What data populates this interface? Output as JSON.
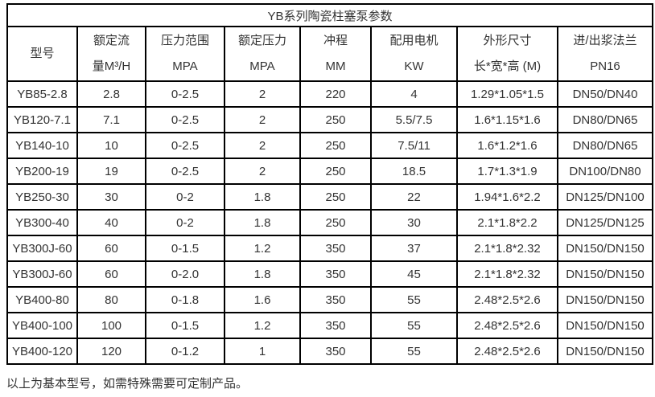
{
  "title": "YB系列陶瓷柱塞泵参数",
  "table": {
    "headers": [
      {
        "id": "model",
        "lines": [
          "型号"
        ]
      },
      {
        "id": "rated-flow",
        "lines": [
          "额定流",
          "量M³/H"
        ]
      },
      {
        "id": "pressure-range",
        "lines": [
          "压力范围",
          "MPA"
        ]
      },
      {
        "id": "rated-pressure",
        "lines": [
          "额定压力",
          "MPA"
        ]
      },
      {
        "id": "stroke",
        "lines": [
          "冲程",
          "MM"
        ]
      },
      {
        "id": "motor-power",
        "lines": [
          "配用电机",
          "KW"
        ]
      },
      {
        "id": "dimensions",
        "lines": [
          "外形尺寸",
          "长*宽*高 (M)"
        ]
      },
      {
        "id": "flange",
        "lines": [
          "进/出浆法兰",
          "PN16"
        ]
      }
    ],
    "rows": [
      [
        "YB85-2.8",
        "2.8",
        "0-2.5",
        "2",
        "220",
        "4",
        "1.29*1.05*1.5",
        "DN50/DN40"
      ],
      [
        "YB120-7.1",
        "7.1",
        "0-2.5",
        "2",
        "250",
        "5.5/7.5",
        "1.6*1.15*1.6",
        "DN80/DN65"
      ],
      [
        "YB140-10",
        "10",
        "0-2.5",
        "2",
        "250",
        "7.5/11",
        "1.6*1.2*1.6",
        "DN80/DN65"
      ],
      [
        "YB200-19",
        "19",
        "0-2.5",
        "2",
        "250",
        "18.5",
        "1.7*1.3*1.9",
        "DN100/DN80"
      ],
      [
        "YB250-30",
        "30",
        "0-2",
        "1.8",
        "250",
        "22",
        "1.94*1.6*2.2",
        "DN125/DN100"
      ],
      [
        "YB300-40",
        "40",
        "0-2",
        "1.8",
        "250",
        "30",
        "2.1*1.8*2.2",
        "DN125/DN125"
      ],
      [
        "YB300J-60",
        "60",
        "0-1.5",
        "1.2",
        "350",
        "37",
        "2.1*1.8*2.32",
        "DN150/DN150"
      ],
      [
        "YB300J-60",
        "60",
        "0-2.0",
        "1.8",
        "350",
        "45",
        "2.1*1.8*2.32",
        "DN150/DN150"
      ],
      [
        "YB400-80",
        "80",
        "0-1.8",
        "1.6",
        "350",
        "55",
        "2.48*2.5*2.6",
        "DN150/DN150"
      ],
      [
        "YB400-100",
        "100",
        "0-1.5",
        "1.2",
        "350",
        "55",
        "2.48*2.5*2.6",
        "DN150/DN150"
      ],
      [
        "YB400-120",
        "120",
        "0-1.2",
        "1",
        "350",
        "55",
        "2.48*2.5*2.6",
        "DN150/DN150"
      ]
    ]
  },
  "footer_note": "以上为基本型号，如需特殊需要可定制产品。",
  "colors": {
    "border": "#000000",
    "text": "#333333",
    "background": "#ffffff"
  }
}
